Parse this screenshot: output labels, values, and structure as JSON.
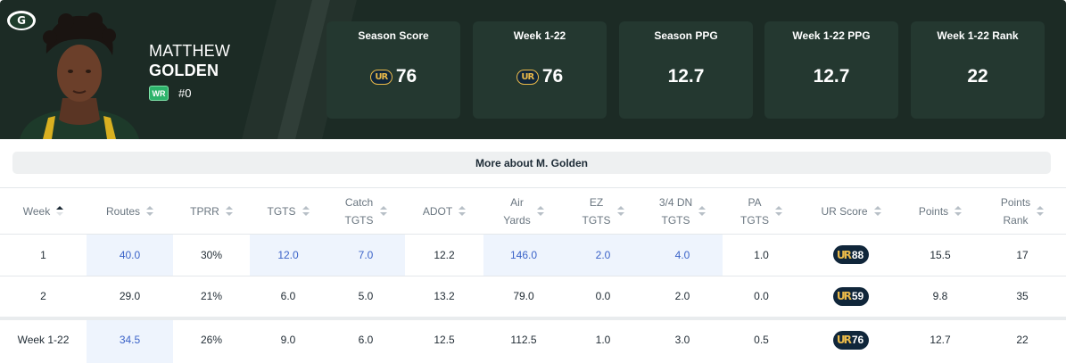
{
  "colors": {
    "header_bg": "#1c2b25",
    "card_bg": "#243830",
    "position_badge": "#2db36b",
    "highlight_bg": "#eef4fd",
    "highlight_text": "#3b63c8",
    "ur_gold": "#e9b949",
    "ur_navy": "#10263a"
  },
  "team_logo": {
    "icon": "packers-g-logo",
    "letter": "G"
  },
  "player": {
    "first_name": "MATTHEW",
    "last_name": "GOLDEN",
    "position": "WR",
    "jersey": "#0"
  },
  "ur_mark": "UR",
  "stat_cards": [
    {
      "label": "Season Score",
      "value": "76",
      "ur_icon": true
    },
    {
      "label": "Week 1-22",
      "value": "76",
      "ur_icon": true
    },
    {
      "label": "Season PPG",
      "value": "12.7",
      "ur_icon": false
    },
    {
      "label": "Week 1-22 PPG",
      "value": "12.7",
      "ur_icon": false
    },
    {
      "label": "Week 1-22 Rank",
      "value": "22",
      "ur_icon": false
    }
  ],
  "more_button": "More about M. Golden",
  "table": {
    "headers": [
      [
        "Week"
      ],
      [
        "Routes"
      ],
      [
        "TPRR"
      ],
      [
        "TGTS"
      ],
      [
        "Catch",
        "TGTS"
      ],
      [
        "ADOT"
      ],
      [
        "Air",
        "Yards"
      ],
      [
        "EZ",
        "TGTS"
      ],
      [
        "3/4 DN",
        "TGTS"
      ],
      [
        "PA",
        "TGTS"
      ],
      [
        "UR Score"
      ],
      [
        "Points"
      ],
      [
        "Points",
        "Rank"
      ]
    ],
    "rows": [
      {
        "cells": [
          "1",
          "40.0",
          "30%",
          "12.0",
          "7.0",
          "12.2",
          "146.0",
          "2.0",
          "4.0",
          "1.0",
          "88",
          "15.5",
          "17"
        ],
        "highlight": [
          1,
          3,
          4,
          6,
          7,
          8
        ]
      },
      {
        "cells": [
          "2",
          "29.0",
          "21%",
          "6.0",
          "5.0",
          "13.2",
          "79.0",
          "0.0",
          "2.0",
          "0.0",
          "59",
          "9.8",
          "35"
        ],
        "highlight": []
      },
      {
        "cells": [
          "Week 1-22",
          "34.5",
          "26%",
          "9.0",
          "6.0",
          "12.5",
          "112.5",
          "1.0",
          "3.0",
          "0.5",
          "76",
          "12.7",
          "22"
        ],
        "highlight": [
          1
        ]
      }
    ]
  }
}
